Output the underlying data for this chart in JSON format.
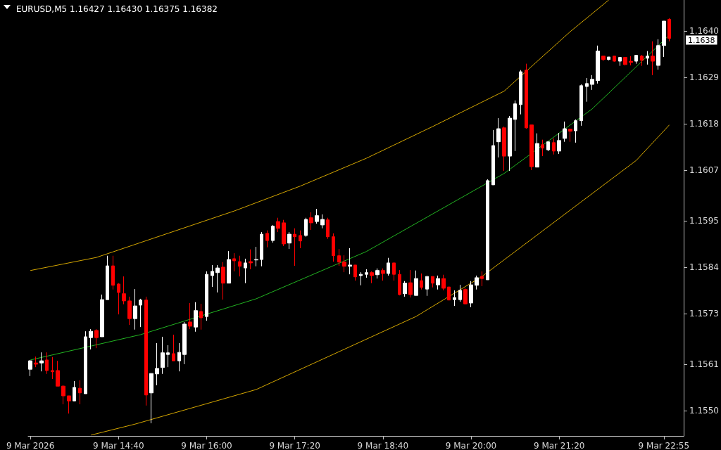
{
  "chart_data": {
    "type": "candlestick",
    "title": "EURUSD,M5 1.16427 1.16430 1.16375 1.16382",
    "x": [
      "2026-03-09T13:20",
      "2026-03-09T13:25",
      "2026-03-09T13:30",
      "2026-03-09T13:35",
      "2026-03-09T13:40",
      "2026-03-09T13:45",
      "2026-03-09T13:50",
      "2026-03-09T13:55",
      "2026-03-09T14:00",
      "2026-03-09T14:05",
      "2026-03-09T14:10",
      "2026-03-09T14:15",
      "2026-03-09T14:20",
      "2026-03-09T14:25",
      "2026-03-09T14:30",
      "2026-03-09T14:35",
      "2026-03-09T14:40",
      "2026-03-09T14:45",
      "2026-03-09T14:50",
      "2026-03-09T14:55",
      "2026-03-09T15:00",
      "2026-03-09T15:05",
      "2026-03-09T15:10",
      "2026-03-09T15:15",
      "2026-03-09T15:20",
      "2026-03-09T15:25",
      "2026-03-09T15:30",
      "2026-03-09T15:35",
      "2026-03-09T15:40",
      "2026-03-09T15:45",
      "2026-03-09T15:50",
      "2026-03-09T15:55",
      "2026-03-09T16:00",
      "2026-03-09T16:05",
      "2026-03-09T16:10",
      "2026-03-09T16:15",
      "2026-03-09T16:20",
      "2026-03-09T16:25",
      "2026-03-09T16:30",
      "2026-03-09T16:35",
      "2026-03-09T16:40",
      "2026-03-09T16:45",
      "2026-03-09T16:50",
      "2026-03-09T16:55",
      "2026-03-09T17:00",
      "2026-03-09T17:05",
      "2026-03-09T17:10",
      "2026-03-09T17:15",
      "2026-03-09T17:20",
      "2026-03-09T17:25",
      "2026-03-09T17:30",
      "2026-03-09T17:35",
      "2026-03-09T17:40",
      "2026-03-09T17:45",
      "2026-03-09T17:50",
      "2026-03-09T17:55",
      "2026-03-09T18:00",
      "2026-03-09T18:05",
      "2026-03-09T18:10",
      "2026-03-09T18:15",
      "2026-03-09T18:20",
      "2026-03-09T18:25",
      "2026-03-09T18:30",
      "2026-03-09T18:35",
      "2026-03-09T18:40",
      "2026-03-09T18:45",
      "2026-03-09T18:50",
      "2026-03-09T18:55",
      "2026-03-09T19:00",
      "2026-03-09T19:05",
      "2026-03-09T19:10",
      "2026-03-09T19:15",
      "2026-03-09T19:20",
      "2026-03-09T19:25",
      "2026-03-09T19:30",
      "2026-03-09T19:35",
      "2026-03-09T19:40",
      "2026-03-09T19:45",
      "2026-03-09T19:50",
      "2026-03-09T19:55",
      "2026-03-09T20:00",
      "2026-03-09T20:05",
      "2026-03-09T20:10",
      "2026-03-09T20:15",
      "2026-03-09T20:20",
      "2026-03-09T20:25",
      "2026-03-09T20:30",
      "2026-03-09T20:35",
      "2026-03-09T20:40",
      "2026-03-09T20:45",
      "2026-03-09T20:50",
      "2026-03-09T20:55",
      "2026-03-09T21:00",
      "2026-03-09T21:05",
      "2026-03-09T21:10",
      "2026-03-09T21:15",
      "2026-03-09T21:20",
      "2026-03-09T21:25",
      "2026-03-09T21:30",
      "2026-03-09T21:35",
      "2026-03-09T21:40",
      "2026-03-09T21:45",
      "2026-03-09T21:50",
      "2026-03-09T21:55",
      "2026-03-09T22:00",
      "2026-03-09T22:05",
      "2026-03-09T22:10",
      "2026-03-09T22:15",
      "2026-03-09T22:20",
      "2026-03-09T22:25",
      "2026-03-09T22:30",
      "2026-03-09T22:35",
      "2026-03-09T22:40",
      "2026-03-09T22:45",
      "2026-03-09T22:50",
      "2026-03-09T22:55",
      "2026-03-09T23:00"
    ],
    "ohlc": [
      [
        1.15598,
        1.1562,
        1.15582,
        1.15618
      ],
      [
        1.15613,
        1.15628,
        1.15603,
        1.1561
      ],
      [
        1.15613,
        1.15638,
        1.15593,
        1.15618
      ],
      [
        1.1562,
        1.15638,
        1.15587,
        1.15595
      ],
      [
        1.15595,
        1.15627,
        1.15575,
        1.15592
      ],
      [
        1.15595,
        1.15618,
        1.15558,
        1.15558
      ],
      [
        1.15558,
        1.1556,
        1.15515,
        1.15535
      ],
      [
        1.15535,
        1.15535,
        1.15493,
        1.15523
      ],
      [
        1.15523,
        1.1557,
        1.15523,
        1.15555
      ],
      [
        1.15553,
        1.15572,
        1.15515,
        1.15542
      ],
      [
        1.1554,
        1.15688,
        1.1554,
        1.15675
      ],
      [
        1.15673,
        1.15693,
        1.15645,
        1.15688
      ],
      [
        1.1569,
        1.15693,
        1.15648,
        1.15673
      ],
      [
        1.15675,
        1.15775,
        1.15675,
        1.15763
      ],
      [
        1.15763,
        1.15867,
        1.15763,
        1.15843
      ],
      [
        1.15843,
        1.15867,
        1.15787,
        1.15797
      ],
      [
        1.158,
        1.15802,
        1.15728,
        1.1578
      ],
      [
        1.15777,
        1.15818,
        1.15752,
        1.1576
      ],
      [
        1.1576,
        1.1577,
        1.15703,
        1.15718
      ],
      [
        1.15718,
        1.15788,
        1.15692,
        1.15748
      ],
      [
        1.1575,
        1.15765,
        1.15698,
        1.15762
      ],
      [
        1.15762,
        1.1577,
        1.15512,
        1.15537
      ],
      [
        1.15542,
        1.15588,
        1.1547,
        1.15588
      ],
      [
        1.15587,
        1.1566,
        1.1556,
        1.156
      ],
      [
        1.15602,
        1.15675,
        1.15587,
        1.15637
      ],
      [
        1.15633,
        1.15655,
        1.15603,
        1.15637
      ],
      [
        1.15635,
        1.1568,
        1.15618,
        1.15618
      ],
      [
        1.15618,
        1.1566,
        1.15593,
        1.15638
      ],
      [
        1.15633,
        1.1571,
        1.1561,
        1.15705
      ],
      [
        1.1571,
        1.15755,
        1.15693,
        1.157
      ],
      [
        1.15698,
        1.15757,
        1.15687,
        1.15737
      ],
      [
        1.15735,
        1.15753,
        1.15692,
        1.1572
      ],
      [
        1.15723,
        1.1583,
        1.15713,
        1.15823
      ],
      [
        1.1582,
        1.15845,
        1.15793,
        1.1583
      ],
      [
        1.15827,
        1.15845,
        1.1578,
        1.15838
      ],
      [
        1.1584,
        1.15852,
        1.15763,
        1.15802
      ],
      [
        1.15802,
        1.15878,
        1.15802,
        1.15858
      ],
      [
        1.1586,
        1.15873,
        1.1583,
        1.15855
      ],
      [
        1.15853,
        1.15867,
        1.15818,
        1.15842
      ],
      [
        1.15838,
        1.1586,
        1.15802,
        1.1585
      ],
      [
        1.15853,
        1.15882,
        1.15835,
        1.1585
      ],
      [
        1.15857,
        1.15888,
        1.15842,
        1.15858
      ],
      [
        1.15858,
        1.15923,
        1.15842,
        1.15918
      ],
      [
        1.1592,
        1.15927,
        1.15887,
        1.15903
      ],
      [
        1.15903,
        1.1594,
        1.15898,
        1.15937
      ],
      [
        1.15948,
        1.15957,
        1.15923,
        1.15932
      ],
      [
        1.15945,
        1.15952,
        1.1589,
        1.15895
      ],
      [
        1.15897,
        1.15923,
        1.15883,
        1.15918
      ],
      [
        1.15918,
        1.15932,
        1.15843,
        1.15912
      ],
      [
        1.15915,
        1.15927,
        1.15885,
        1.15902
      ],
      [
        1.15915,
        1.15957,
        1.15912,
        1.15953
      ],
      [
        1.15957,
        1.1597,
        1.15928,
        1.15945
      ],
      [
        1.15948,
        1.15978,
        1.15943,
        1.15962
      ],
      [
        1.1594,
        1.15965,
        1.15932,
        1.15953
      ],
      [
        1.15952,
        1.15957,
        1.15907,
        1.15912
      ],
      [
        1.15912,
        1.1592,
        1.15853,
        1.15867
      ],
      [
        1.15867,
        1.15883,
        1.15843,
        1.15852
      ],
      [
        1.15852,
        1.15868,
        1.15828,
        1.15842
      ],
      [
        1.15842,
        1.15885,
        1.15823,
        1.15845
      ],
      [
        1.15845,
        1.15845,
        1.15808,
        1.15817
      ],
      [
        1.1582,
        1.15828,
        1.15797,
        1.15823
      ],
      [
        1.15823,
        1.15835,
        1.15815,
        1.15827
      ],
      [
        1.15827,
        1.1583,
        1.15802,
        1.1582
      ],
      [
        1.15822,
        1.15837,
        1.15813,
        1.15832
      ],
      [
        1.15832,
        1.15837,
        1.15808,
        1.15825
      ],
      [
        1.15825,
        1.15862,
        1.1582,
        1.1585
      ],
      [
        1.1585,
        1.1585,
        1.15808,
        1.15823
      ],
      [
        1.15823,
        1.15833,
        1.15773,
        1.15775
      ],
      [
        1.15777,
        1.15807,
        1.1577,
        1.15802
      ],
      [
        1.15803,
        1.15833,
        1.15768,
        1.15775
      ],
      [
        1.15773,
        1.15832,
        1.15773,
        1.15813
      ],
      [
        1.15808,
        1.15825,
        1.15787,
        1.15792
      ],
      [
        1.15788,
        1.15818,
        1.15772,
        1.15818
      ],
      [
        1.15818,
        1.15818,
        1.15792,
        1.15802
      ],
      [
        1.15798,
        1.1582,
        1.15787,
        1.15813
      ],
      [
        1.15813,
        1.15822,
        1.15785,
        1.1579
      ],
      [
        1.15793,
        1.15793,
        1.15762,
        1.15762
      ],
      [
        1.15763,
        1.15785,
        1.15748,
        1.15768
      ],
      [
        1.15763,
        1.15798,
        1.15758,
        1.15785
      ],
      [
        1.15787,
        1.1579,
        1.15752,
        1.15753
      ],
      [
        1.15755,
        1.15807,
        1.15745,
        1.15798
      ],
      [
        1.15797,
        1.1582,
        1.15787,
        1.15815
      ],
      [
        1.15818,
        1.1583,
        1.15795,
        1.15813
      ],
      [
        1.1581,
        1.16048,
        1.1581,
        1.16045
      ],
      [
        1.16035,
        1.16165,
        1.16035,
        1.16128
      ],
      [
        1.16137,
        1.16193,
        1.161,
        1.16168
      ],
      [
        1.1617,
        1.16173,
        1.16068,
        1.16103
      ],
      [
        1.16103,
        1.16198,
        1.16068,
        1.16193
      ],
      [
        1.1619,
        1.16235,
        1.16115,
        1.16227
      ],
      [
        1.16225,
        1.16307,
        1.16202,
        1.16303
      ],
      [
        1.16307,
        1.16322,
        1.16168,
        1.1617
      ],
      [
        1.16177,
        1.16177,
        1.1607,
        1.16078
      ],
      [
        1.16077,
        1.16157,
        1.16077,
        1.16133
      ],
      [
        1.1613,
        1.16142,
        1.16103,
        1.16122
      ],
      [
        1.16118,
        1.16137,
        1.16115,
        1.16137
      ],
      [
        1.16135,
        1.16145,
        1.16107,
        1.16115
      ],
      [
        1.16115,
        1.16158,
        1.16108,
        1.1614
      ],
      [
        1.16145,
        1.16185,
        1.16137,
        1.16168
      ],
      [
        1.16167,
        1.16167,
        1.16137,
        1.16162
      ],
      [
        1.16163,
        1.1619,
        1.16135,
        1.16187
      ],
      [
        1.16187,
        1.16273,
        1.16175,
        1.1627
      ],
      [
        1.16268,
        1.16288,
        1.16232,
        1.16275
      ],
      [
        1.16273,
        1.16295,
        1.1626,
        1.16285
      ],
      [
        1.16282,
        1.16365,
        1.16275,
        1.16352
      ],
      [
        1.1634,
        1.1634,
        1.16328,
        1.16332
      ],
      [
        1.16332,
        1.16338,
        1.1633,
        1.16338
      ],
      [
        1.1634,
        1.1634,
        1.16327,
        1.16328
      ],
      [
        1.16328,
        1.16338,
        1.16317,
        1.16337
      ],
      [
        1.16337,
        1.16337,
        1.16318,
        1.1632
      ],
      [
        1.16328,
        1.1634,
        1.16318,
        1.16325
      ],
      [
        1.16328,
        1.16342,
        1.16322,
        1.16342
      ],
      [
        1.1634,
        1.16343,
        1.16317,
        1.1633
      ],
      [
        1.16335,
        1.16352,
        1.1632,
        1.1634
      ],
      [
        1.1634,
        1.16375,
        1.16295,
        1.16328
      ],
      [
        1.16318,
        1.1638,
        1.16308,
        1.16365
      ],
      [
        1.16365,
        1.16423,
        1.16338,
        1.16423
      ],
      [
        1.16427,
        1.1643,
        1.16375,
        1.16382
      ]
    ],
    "colors": [
      "#ffffff",
      "#ff0000",
      "#ffffff",
      "#ff0000",
      "#ff0000",
      "#ff0000",
      "#ff0000",
      "#ff0000",
      "#ffffff",
      "#ff0000",
      "#ffffff",
      "#ffffff",
      "#ff0000",
      "#ffffff",
      "#ffffff",
      "#ff0000",
      "#ff0000",
      "#ff0000",
      "#ff0000",
      "#ffffff",
      "#ffffff",
      "#ff0000",
      "#ffffff",
      "#ffffff",
      "#ffffff",
      "#ffffff",
      "#ff0000",
      "#ffffff",
      "#ffffff",
      "#ff0000",
      "#ffffff",
      "#ff0000",
      "#ffffff",
      "#ffffff",
      "#ffffff",
      "#ff0000",
      "#ffffff",
      "#ff0000",
      "#ff0000",
      "#ffffff",
      "#ff0000",
      "#ffffff",
      "#ffffff",
      "#ff0000",
      "#ffffff",
      "#ff0000",
      "#ff0000",
      "#ffffff",
      "#ff0000",
      "#ff0000",
      "#ffffff",
      "#ff0000",
      "#ffffff",
      "#ffffff",
      "#ff0000",
      "#ff0000",
      "#ff0000",
      "#ff0000",
      "#ffffff",
      "#ff0000",
      "#ffffff",
      "#ffffff",
      "#ff0000",
      "#ffffff",
      "#ff0000",
      "#ffffff",
      "#ff0000",
      "#ff0000",
      "#ffffff",
      "#ff0000",
      "#ffffff",
      "#ff0000",
      "#ffffff",
      "#ff0000",
      "#ffffff",
      "#ff0000",
      "#ff0000",
      "#ffffff",
      "#ffffff",
      "#ff0000",
      "#ffffff",
      "#ffffff",
      "#ff0000",
      "#ffffff",
      "#ffffff",
      "#ffffff",
      "#ff0000",
      "#ffffff",
      "#ffffff",
      "#ffffff",
      "#ff0000",
      "#ff0000",
      "#ffffff",
      "#ff0000",
      "#ffffff",
      "#ff0000",
      "#ffffff",
      "#ffffff",
      "#ff0000",
      "#ffffff",
      "#ffffff",
      "#ffffff",
      "#ffffff",
      "#ffffff",
      "#ff0000",
      "#ffffff",
      "#ff0000",
      "#ffffff",
      "#ff0000",
      "#ff0000",
      "#ffffff",
      "#ff0000",
      "#ffffff",
      "#ff0000",
      "#ffffff",
      "#ffffff",
      "#ff0000"
    ],
    "series": [
      {
        "type": "line",
        "color": "#d4a600",
        "x": [
          "2026-03-09T13:20",
          "2026-03-09T14:20",
          "2026-03-09T16:25",
          "2026-03-09T17:25",
          "2026-03-09T18:25",
          "2026-03-09T19:25",
          "2026-03-09T20:30",
          "2026-03-09T21:30",
          "2026-03-09T22:05"
        ],
        "values": [
          1.15832,
          1.15863,
          1.15973,
          1.16032,
          1.16098,
          1.16173,
          1.16257,
          1.16398,
          1.16473
        ]
      },
      {
        "type": "line",
        "color": "#22b422",
        "x": [
          "2026-03-09T13:20",
          "2026-03-09T15:00",
          "2026-03-09T16:45",
          "2026-03-09T18:25",
          "2026-03-09T20:30",
          "2026-03-09T21:50",
          "2026-03-09T23:00"
        ],
        "values": [
          1.1562,
          1.1568,
          1.15765,
          1.15877,
          1.16062,
          1.16215,
          1.1639
        ]
      },
      {
        "type": "line",
        "color": "#d4a600",
        "x": [
          "2026-03-09T14:15",
          "2026-03-09T14:55",
          "2026-03-09T16:45",
          "2026-03-09T19:10",
          "2026-03-09T20:10",
          "2026-03-09T22:30",
          "2026-03-09T23:00"
        ],
        "values": [
          1.15442,
          1.15468,
          1.1555,
          1.15723,
          1.15818,
          1.16093,
          1.16177
        ]
      }
    ],
    "xlim": [
      "2026-03-09T13:18",
      "2026-03-09T23:13"
    ],
    "xticks": [
      {
        "value": "2026-03-09T13:20",
        "label": "9 Mar 2026"
      },
      {
        "value": "2026-03-09T14:40",
        "label": "9 Mar 14:40"
      },
      {
        "value": "2026-03-09T16:00",
        "label": "9 Mar 16:00"
      },
      {
        "value": "2026-03-09T17:20",
        "label": "9 Mar 17:20"
      },
      {
        "value": "2026-03-09T18:40",
        "label": "9 Mar 18:40"
      },
      {
        "value": "2026-03-09T20:00",
        "label": "9 Mar 20:00"
      },
      {
        "value": "2026-03-09T21:20",
        "label": "9 Mar 21:20"
      },
      {
        "value": "2026-03-09T22:55",
        "label": "9 Mar 22:55"
      }
    ],
    "ylim": [
      1.1544,
      1.16473
    ],
    "yticks": [
      {
        "value": 1.155,
        "label": "1.1550"
      },
      {
        "value": 1.1561,
        "label": "1.1561"
      },
      {
        "value": 1.1573,
        "label": "1.1573"
      },
      {
        "value": 1.1584,
        "label": "1.1584"
      },
      {
        "value": 1.1595,
        "label": "1.1595"
      },
      {
        "value": 1.1607,
        "label": "1.1607"
      },
      {
        "value": 1.1618,
        "label": "1.1618"
      },
      {
        "value": 1.1629,
        "label": "1.1629"
      },
      {
        "value": 1.164,
        "label": "1.1640"
      }
    ],
    "annotations": [
      "1.1638"
    ]
  }
}
